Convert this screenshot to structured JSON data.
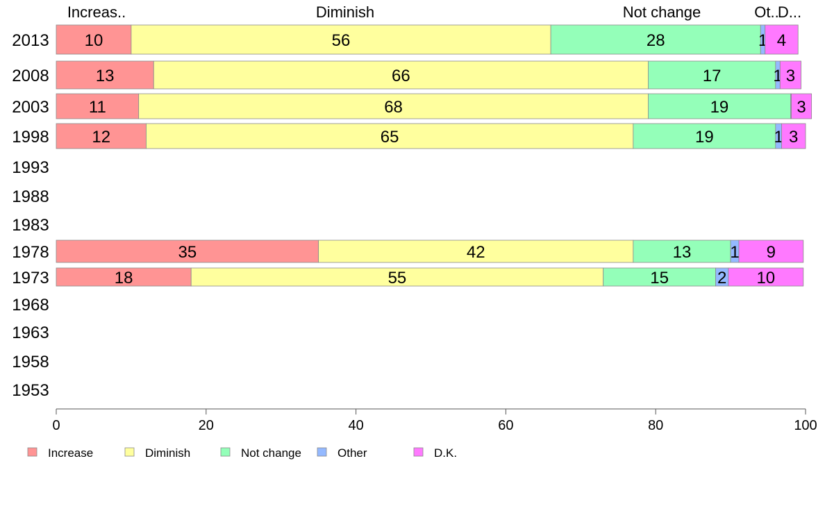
{
  "chart_data": {
    "type": "bar",
    "orientation": "horizontal",
    "stacked": true,
    "categories": [
      "2013",
      "2008",
      "2003",
      "1998",
      "1993",
      "1988",
      "1983",
      "1978",
      "1973",
      "1968",
      "1963",
      "1958",
      "1953"
    ],
    "series": [
      {
        "name": "Increase",
        "color": "#ff9494",
        "values": [
          10,
          13,
          11,
          12,
          null,
          null,
          null,
          35,
          18,
          null,
          null,
          null,
          null
        ],
        "labels": [
          "10",
          "13",
          "11",
          "12",
          "",
          "",
          "",
          "35",
          "18",
          "",
          "",
          "",
          ""
        ]
      },
      {
        "name": "Diminish",
        "color": "#ffff9e",
        "values": [
          56,
          66,
          68,
          65,
          null,
          null,
          null,
          42,
          55,
          null,
          null,
          null,
          null
        ],
        "labels": [
          "56",
          "66",
          "68",
          "65",
          "",
          "",
          "",
          "42",
          "55",
          "",
          "",
          "",
          ""
        ]
      },
      {
        "name": "Not change",
        "color": "#94ffb9",
        "values": [
          28,
          17,
          19,
          19,
          null,
          null,
          null,
          13,
          15,
          null,
          null,
          null,
          null
        ],
        "labels": [
          "28",
          "17",
          "19",
          "19",
          "",
          "",
          "",
          "13",
          "15",
          "",
          "",
          "",
          ""
        ]
      },
      {
        "name": "Other",
        "color": "#94b9ff",
        "values": [
          0.6,
          0.6,
          0.1,
          0.8,
          null,
          null,
          null,
          1.1,
          1.7,
          null,
          null,
          null,
          null
        ],
        "labels": [
          "1",
          "1",
          "",
          "1",
          "",
          "",
          "",
          "1",
          "2",
          "",
          "",
          "",
          ""
        ]
      },
      {
        "name": "D.K.",
        "color": "#ff79ff",
        "values": [
          4.4,
          2.8,
          2.7,
          3.2,
          null,
          null,
          null,
          8.6,
          10,
          null,
          null,
          null,
          null
        ],
        "labels": [
          "4",
          "3",
          "3",
          "3",
          "",
          "",
          "",
          "9",
          "10",
          "",
          "",
          "",
          ""
        ]
      }
    ],
    "top_labels": [
      "Increas..",
      "Diminish",
      "Not change",
      "Ot..",
      "D..."
    ],
    "xlim": [
      0,
      100
    ],
    "xticks": [
      0,
      20,
      40,
      60,
      80,
      100
    ],
    "legend_position": "bottom-left",
    "grid": false
  }
}
